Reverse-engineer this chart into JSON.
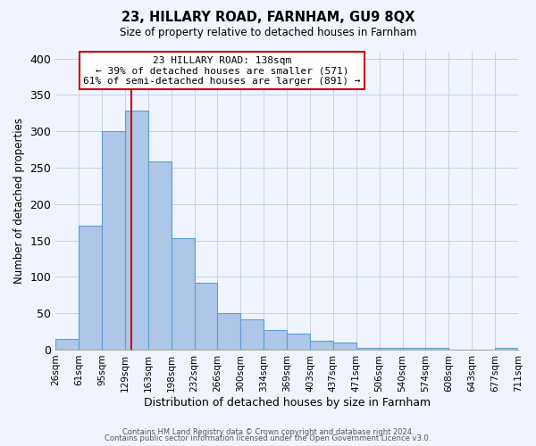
{
  "title": "23, HILLARY ROAD, FARNHAM, GU9 8QX",
  "subtitle": "Size of property relative to detached houses in Farnham",
  "xlabel": "Distribution of detached houses by size in Farnham",
  "ylabel": "Number of detached properties",
  "bar_values": [
    15,
    170,
    300,
    328,
    258,
    153,
    92,
    50,
    42,
    27,
    22,
    12,
    10,
    3,
    3,
    2,
    2,
    0,
    0,
    2
  ],
  "bar_labels": [
    "26sqm",
    "61sqm",
    "95sqm",
    "129sqm",
    "163sqm",
    "198sqm",
    "232sqm",
    "266sqm",
    "300sqm",
    "334sqm",
    "369sqm",
    "403sqm",
    "437sqm",
    "471sqm",
    "506sqm",
    "540sqm",
    "574sqm",
    "608sqm",
    "643sqm",
    "677sqm",
    "711sqm"
  ],
  "bar_color": "#aec6e8",
  "bar_edge_color": "#5a9fd4",
  "vline_position": 3.26,
  "vline_color": "#cc0000",
  "ylim": [
    0,
    410
  ],
  "yticks": [
    0,
    50,
    100,
    150,
    200,
    250,
    300,
    350,
    400
  ],
  "annotation_title": "23 HILLARY ROAD: 138sqm",
  "annotation_line1": "← 39% of detached houses are smaller (571)",
  "annotation_line2": "61% of semi-detached houses are larger (891) →",
  "annotation_box_color": "#ffffff",
  "annotation_box_edge": "#cc0000",
  "footer1": "Contains HM Land Registry data © Crown copyright and database right 2024.",
  "footer2": "Contains public sector information licensed under the Open Government Licence v3.0.",
  "bg_color": "#f0f4ff",
  "grid_color": "#c8d0e0"
}
